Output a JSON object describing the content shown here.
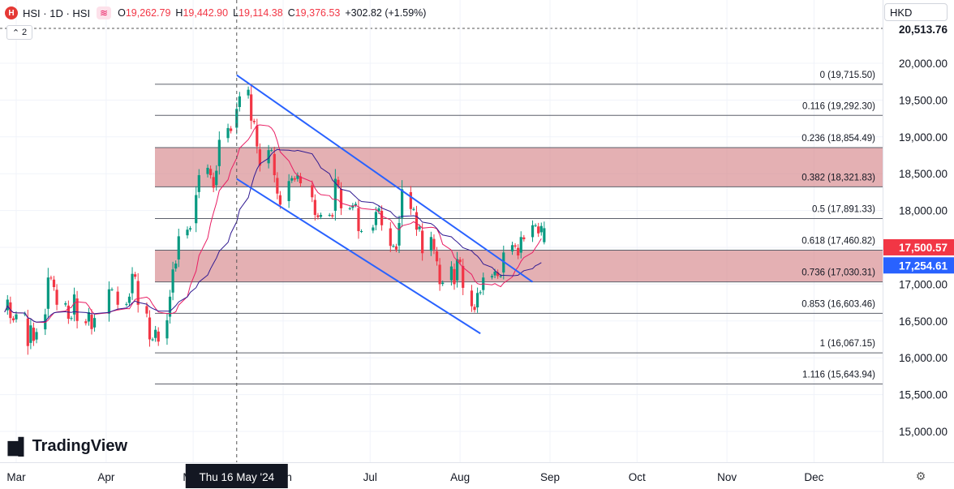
{
  "header": {
    "symbol_line": "HSI · 1D · HSI",
    "open_label": "O",
    "open": "19,262.79",
    "high_label": "H",
    "high": "19,442.90",
    "low_label": "L",
    "low": "19,114.38",
    "close_label": "C",
    "close": "19,376.53",
    "change": "+302.82 (+1.59%)"
  },
  "indicator_toggle": {
    "count": "2"
  },
  "currency": "HKD",
  "branding": "TradingView",
  "colors": {
    "up": "#089981",
    "down": "#f23645",
    "channel": "#2962ff",
    "ma_fast": "#e91e63",
    "ma_slow": "#311b92",
    "zone": "#d5868b"
  },
  "chart_data": {
    "type": "candlestick",
    "yaxis": {
      "ticks": [
        15000,
        15500,
        16000,
        16500,
        17000,
        17500,
        18000,
        18500,
        19000,
        19500,
        20000
      ],
      "tick_labels": [
        "15,000.00",
        "15,500.00",
        "16,000.00",
        "16,500.00",
        "17,000.00",
        "17,500.00",
        "18,000.00",
        "18,500.00",
        "19,000.00",
        "19,500.00",
        "20,000.00"
      ],
      "range": [
        14550,
        20450
      ]
    },
    "top_price_label": "20,513.76",
    "price_labels": [
      {
        "value": 17500.57,
        "text": "17,500.57",
        "color": "#f23645"
      },
      {
        "value": 17254.61,
        "text": "17,254.61",
        "color": "#2962ff"
      }
    ],
    "xaxis": {
      "labels": [
        "Mar",
        "Apr",
        "May",
        "Jun",
        "Jul",
        "Aug",
        "Sep",
        "Oct",
        "Nov",
        "Dec"
      ],
      "crosshair_label": "Thu 16 May '24"
    },
    "fibonacci": [
      {
        "level": "0",
        "value": 19715.5,
        "text": "0 (19,715.50)"
      },
      {
        "level": "0.116",
        "value": 19292.3,
        "text": "0.116 (19,292.30)"
      },
      {
        "level": "0.236",
        "value": 18854.49,
        "text": "0.236 (18,854.49)"
      },
      {
        "level": "0.382",
        "value": 18321.83,
        "text": "0.382 (18,321.83)"
      },
      {
        "level": "0.5",
        "value": 17891.33,
        "text": "0.5 (17,891.33)"
      },
      {
        "level": "0.618",
        "value": 17460.82,
        "text": "0.618 (17,460.82)"
      },
      {
        "level": "0.736",
        "value": 17030.31,
        "text": "0.736 (17,030.31)"
      },
      {
        "level": "0.853",
        "value": 16603.46,
        "text": "0.853 (16,603.46)"
      },
      {
        "level": "1",
        "value": 16067.15,
        "text": "1 (16,067.15)"
      },
      {
        "level": "1.116",
        "value": 15643.94,
        "text": "1.116 (15,643.94)"
      }
    ],
    "zones": [
      [
        18321.83,
        18854.49
      ],
      [
        17030.31,
        17460.82
      ]
    ],
    "channel": [
      {
        "from": [
          "2024-05-16",
          19840
        ],
        "to": [
          "2024-08-26",
          17030
        ]
      },
      {
        "from": [
          "2024-05-16",
          18430
        ],
        "to": [
          "2024-08-08",
          16330
        ]
      }
    ],
    "closes": [
      [
        "2024-02-26",
        16620
      ],
      [
        "2024-02-27",
        16790
      ],
      [
        "2024-02-28",
        16540
      ],
      [
        "2024-02-29",
        16510
      ],
      [
        "2024-03-01",
        16590
      ],
      [
        "2024-03-04",
        16600
      ],
      [
        "2024-03-05",
        16160
      ],
      [
        "2024-03-06",
        16440
      ],
      [
        "2024-03-07",
        16230
      ],
      [
        "2024-03-08",
        16350
      ],
      [
        "2024-03-11",
        16590
      ],
      [
        "2024-03-12",
        17090
      ],
      [
        "2024-03-13",
        17080
      ],
      [
        "2024-03-14",
        16960
      ],
      [
        "2024-03-15",
        16720
      ],
      [
        "2024-03-18",
        16740
      ],
      [
        "2024-03-19",
        16530
      ],
      [
        "2024-03-20",
        16540
      ],
      [
        "2024-03-21",
        16860
      ],
      [
        "2024-03-22",
        16500
      ],
      [
        "2024-03-25",
        16470
      ],
      [
        "2024-03-26",
        16620
      ],
      [
        "2024-03-27",
        16390
      ],
      [
        "2024-03-28",
        16540
      ],
      [
        "2024-04-02",
        16930
      ],
      [
        "2024-04-03",
        16930
      ],
      [
        "2024-04-05",
        16720
      ],
      [
        "2024-04-08",
        16730
      ],
      [
        "2024-04-09",
        16830
      ],
      [
        "2024-04-10",
        17140
      ],
      [
        "2024-04-11",
        17100
      ],
      [
        "2024-04-12",
        16720
      ],
      [
        "2024-04-15",
        16600
      ],
      [
        "2024-04-16",
        16250
      ],
      [
        "2024-04-17",
        16250
      ],
      [
        "2024-04-18",
        16380
      ],
      [
        "2024-04-19",
        16220
      ],
      [
        "2024-04-22",
        16510
      ],
      [
        "2024-04-23",
        16830
      ],
      [
        "2024-04-24",
        17200
      ],
      [
        "2024-04-25",
        17280
      ],
      [
        "2024-04-26",
        17650
      ],
      [
        "2024-04-29",
        17740
      ],
      [
        "2024-04-30",
        17760
      ],
      [
        "2024-05-02",
        18210
      ],
      [
        "2024-05-03",
        18480
      ],
      [
        "2024-05-06",
        18580
      ],
      [
        "2024-05-07",
        18480
      ],
      [
        "2024-05-08",
        18310
      ],
      [
        "2024-05-09",
        18540
      ],
      [
        "2024-05-10",
        18960
      ],
      [
        "2024-05-13",
        19120
      ],
      [
        "2024-05-14",
        19080
      ],
      [
        "2024-05-16",
        19380
      ],
      [
        "2024-05-17",
        19550
      ],
      [
        "2024-05-20",
        19640
      ],
      [
        "2024-05-21",
        19220
      ],
      [
        "2024-05-22",
        19200
      ],
      [
        "2024-05-23",
        18870
      ],
      [
        "2024-05-24",
        18610
      ],
      [
        "2024-05-27",
        18820
      ],
      [
        "2024-05-28",
        18820
      ],
      [
        "2024-05-29",
        18480
      ],
      [
        "2024-05-30",
        18230
      ],
      [
        "2024-05-31",
        18080
      ],
      [
        "2024-06-03",
        18400
      ],
      [
        "2024-06-04",
        18440
      ],
      [
        "2024-06-05",
        18420
      ],
      [
        "2024-06-06",
        18480
      ],
      [
        "2024-06-07",
        18370
      ],
      [
        "2024-06-11",
        18180
      ],
      [
        "2024-06-12",
        17940
      ],
      [
        "2024-06-13",
        17910
      ],
      [
        "2024-06-14",
        17940
      ],
      [
        "2024-06-17",
        17940
      ],
      [
        "2024-06-18",
        17920
      ],
      [
        "2024-06-19",
        18430
      ],
      [
        "2024-06-20",
        18340
      ],
      [
        "2024-06-21",
        18030
      ],
      [
        "2024-06-24",
        18030
      ],
      [
        "2024-06-25",
        18070
      ],
      [
        "2024-06-26",
        18090
      ],
      [
        "2024-06-27",
        17720
      ],
      [
        "2024-06-28",
        17720
      ],
      [
        "2024-07-02",
        17770
      ],
      [
        "2024-07-03",
        17980
      ],
      [
        "2024-07-04",
        18030
      ],
      [
        "2024-07-05",
        17800
      ],
      [
        "2024-07-08",
        17520
      ],
      [
        "2024-07-09",
        17520
      ],
      [
        "2024-07-10",
        17470
      ],
      [
        "2024-07-11",
        17830
      ],
      [
        "2024-07-12",
        18290
      ],
      [
        "2024-07-15",
        18020
      ],
      [
        "2024-07-16",
        18020
      ],
      [
        "2024-07-17",
        17740
      ],
      [
        "2024-07-18",
        17780
      ],
      [
        "2024-07-19",
        17420
      ],
      [
        "2024-07-22",
        17640
      ],
      [
        "2024-07-23",
        17470
      ],
      [
        "2024-07-24",
        17310
      ],
      [
        "2024-07-25",
        17000
      ],
      [
        "2024-07-26",
        17020
      ],
      [
        "2024-07-29",
        17240
      ],
      [
        "2024-07-30",
        17000
      ],
      [
        "2024-07-31",
        17340
      ],
      [
        "2024-08-01",
        17300
      ],
      [
        "2024-08-02",
        16950
      ],
      [
        "2024-08-05",
        16700
      ],
      [
        "2024-08-06",
        16650
      ],
      [
        "2024-08-07",
        16880
      ],
      [
        "2024-08-08",
        16890
      ],
      [
        "2024-08-09",
        17090
      ],
      [
        "2024-08-12",
        17110
      ],
      [
        "2024-08-13",
        17170
      ],
      [
        "2024-08-14",
        17110
      ],
      [
        "2024-08-15",
        17110
      ],
      [
        "2024-08-16",
        17430
      ],
      [
        "2024-08-19",
        17530
      ],
      [
        "2024-08-20",
        17510
      ],
      [
        "2024-08-21",
        17390
      ],
      [
        "2024-08-22",
        17640
      ],
      [
        "2024-08-23",
        17610
      ],
      [
        "2024-08-26",
        17800
      ],
      [
        "2024-08-27",
        17800
      ],
      [
        "2024-08-28",
        17690
      ],
      [
        "2024-08-29",
        17790
      ]
    ],
    "last": {
      "date": "2024-08-30",
      "open": 17570,
      "high": 17850,
      "low": 17540,
      "close": 17760
    }
  }
}
